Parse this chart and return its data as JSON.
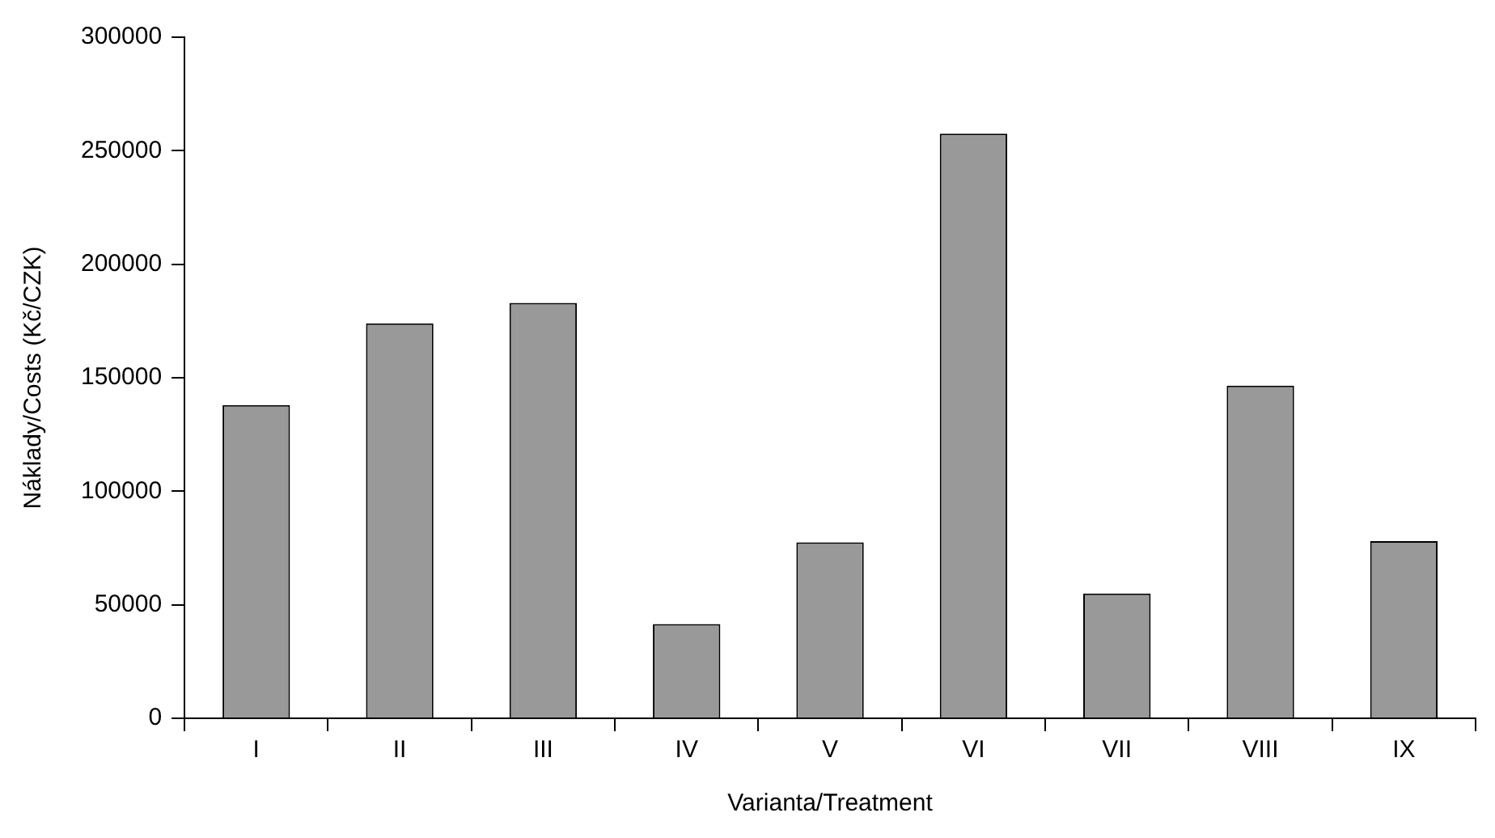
{
  "chart_data": {
    "type": "bar",
    "xlabel": "Varianta/Treatment",
    "ylabel": "Náklady/Costs (Kč/CZK)",
    "categories": [
      "I",
      "II",
      "III",
      "IV",
      "V",
      "VI",
      "VII",
      "VIII",
      "IX"
    ],
    "values": [
      138000,
      174000,
      183000,
      41500,
      77500,
      257500,
      55000,
      146500,
      78000
    ],
    "color": "#999999",
    "ylim": [
      0,
      300000
    ],
    "yticks": [
      0,
      50000,
      100000,
      150000,
      200000,
      250000,
      300000
    ],
    "grid": false,
    "legend": false
  }
}
